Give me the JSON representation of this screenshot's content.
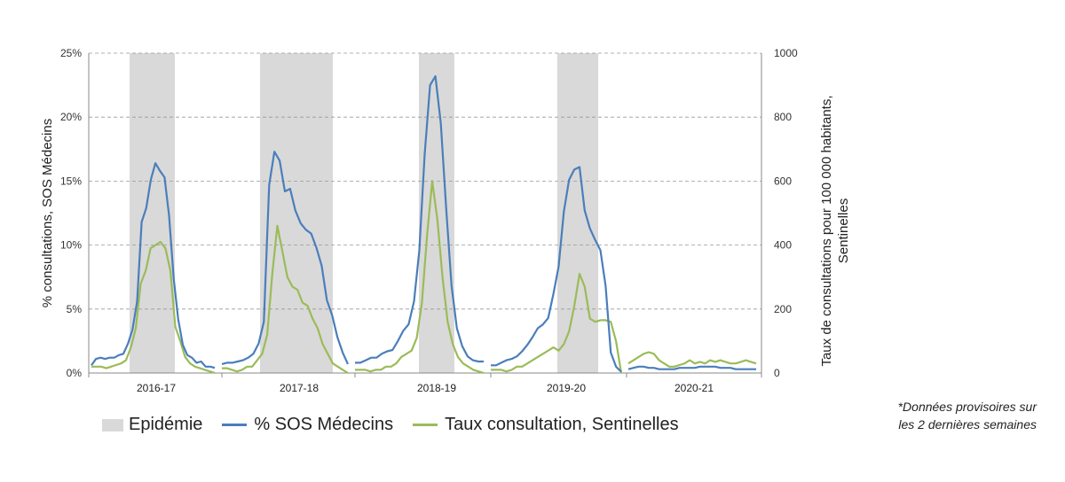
{
  "chart_data": {
    "type": "line",
    "left_axis": {
      "label": "% consultations, SOS Médecins",
      "ylim": [
        0,
        25
      ],
      "ticks": [
        "0%",
        "5%",
        "10%",
        "15%",
        "20%",
        "25%"
      ]
    },
    "right_axis": {
      "label_lines": [
        "Taux de consultations pour 100 000 habitants,",
        "Sentinelles"
      ],
      "ylim": [
        0,
        1000
      ],
      "ticks": [
        "0",
        "200",
        "400",
        "600",
        "800",
        "1000"
      ]
    },
    "grid": "horizontal dashed",
    "seasons": [
      {
        "label": "2016-17",
        "sos": [
          0.6,
          1.1,
          1.2,
          1.1,
          1.2,
          1.2,
          1.4,
          1.5,
          2.3,
          3.4,
          5.6,
          11.8,
          12.9,
          15.1,
          16.4,
          15.8,
          15.3,
          12.3,
          7.4,
          4.2,
          2.2,
          1.4,
          1.2,
          0.8,
          0.9,
          0.5,
          0.5,
          0.4
        ],
        "sentinel": [
          20,
          20,
          20,
          15,
          20,
          25,
          30,
          40,
          80,
          140,
          280,
          320,
          390,
          400,
          410,
          390,
          320,
          145,
          100,
          50,
          30,
          20,
          15,
          10,
          5,
          0
        ]
      },
      {
        "label": "2017-18",
        "sos": [
          0.7,
          0.8,
          0.8,
          0.9,
          1.0,
          1.2,
          1.5,
          2.3,
          4.0,
          14.7,
          17.3,
          16.6,
          14.2,
          14.4,
          12.7,
          11.7,
          11.2,
          10.9,
          9.8,
          8.4,
          5.7,
          4.5,
          2.8,
          1.6,
          0.7
        ],
        "sentinel": [
          15,
          15,
          10,
          5,
          10,
          20,
          20,
          40,
          60,
          120,
          310,
          460,
          380,
          300,
          270,
          260,
          220,
          210,
          170,
          140,
          90,
          60,
          30,
          20,
          10,
          0
        ]
      },
      {
        "label": "2018-19",
        "sos": [
          0.8,
          0.8,
          1.0,
          1.2,
          1.2,
          1.5,
          1.7,
          1.8,
          2.5,
          3.3,
          3.8,
          5.6,
          9.6,
          17.1,
          22.5,
          23.2,
          19.5,
          12.9,
          6.8,
          3.5,
          2.1,
          1.3,
          1.0,
          0.9,
          0.9
        ],
        "sentinel": [
          10,
          10,
          10,
          5,
          10,
          10,
          20,
          20,
          30,
          50,
          60,
          70,
          110,
          220,
          430,
          600,
          480,
          300,
          160,
          90,
          50,
          30,
          20,
          10,
          5,
          0
        ]
      },
      {
        "label": "2019-20",
        "sos": [
          0.6,
          0.6,
          0.8,
          1.0,
          1.1,
          1.3,
          1.7,
          2.2,
          2.8,
          3.5,
          3.8,
          4.3,
          6.2,
          8.3,
          12.6,
          15.1,
          15.9,
          16.1,
          12.7,
          11.3,
          10.4,
          9.6,
          6.8,
          1.6,
          0.5,
          0.1
        ],
        "sentinel": [
          10,
          10,
          10,
          5,
          10,
          20,
          20,
          30,
          40,
          50,
          60,
          70,
          80,
          70,
          90,
          130,
          210,
          310,
          270,
          170,
          160,
          165,
          165,
          160,
          100,
          0
        ]
      },
      {
        "label": "2020-21",
        "sos": [
          0.3,
          0.4,
          0.5,
          0.5,
          0.4,
          0.4,
          0.3,
          0.3,
          0.3,
          0.3,
          0.4,
          0.4,
          0.4,
          0.4,
          0.5,
          0.5,
          0.5,
          0.5,
          0.4,
          0.4,
          0.4,
          0.3,
          0.3,
          0.3,
          0.3,
          0.3
        ],
        "sentinel": [
          30,
          40,
          50,
          60,
          65,
          60,
          40,
          30,
          20,
          20,
          25,
          30,
          40,
          30,
          35,
          30,
          40,
          35,
          40,
          35,
          30,
          30,
          35,
          40,
          35,
          30
        ]
      }
    ],
    "epidemic_shading": "Epidémie"
  },
  "legend": {
    "epidemic": "Epidémie",
    "sos": "% SOS Médecins",
    "sentinel": "Taux consultation, Sentinelles"
  },
  "colors": {
    "sos": "#4a7ebb",
    "sentinel": "#9bbb59",
    "epidemic": "#d9d9d9",
    "grid": "#999999"
  },
  "note": [
    "*Données provisoires sur",
    "les 2 dernières semaines"
  ]
}
